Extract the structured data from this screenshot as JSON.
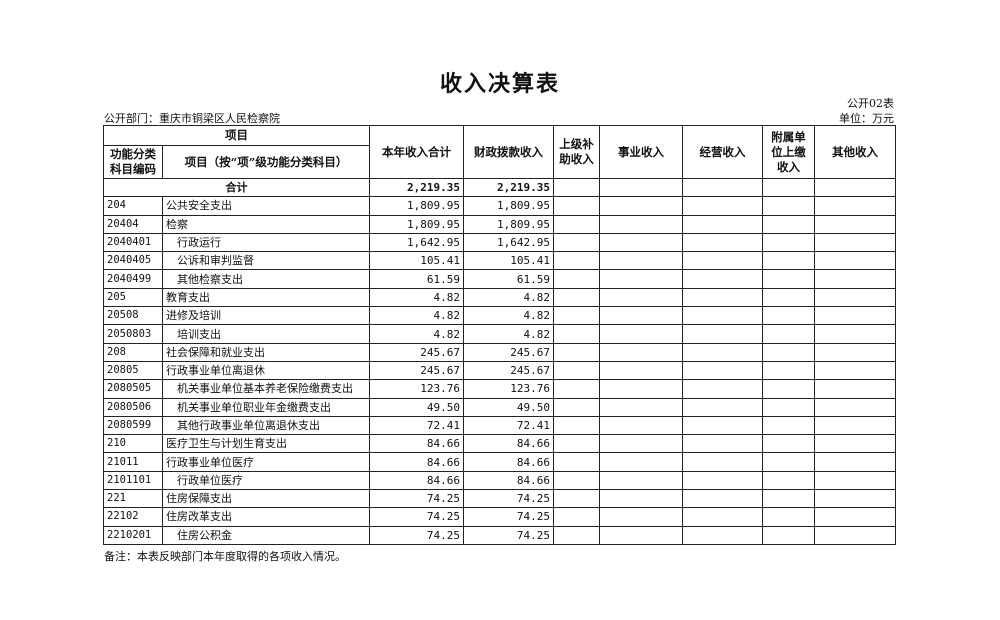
{
  "title": "收入决算表",
  "form_no": "公开02表",
  "department": "公开部门：重庆市铜梁区人民检察院",
  "unit": "单位：万元",
  "headers": {
    "item": "项目",
    "code": "功能分类科目编码",
    "name": "项目（按“项”级功能分类科目）",
    "total": "本年收入合计",
    "fiscal": "财政拨款收入",
    "superior": "上级补助收入",
    "business": "事业收入",
    "operating": "经营收入",
    "affiliated": "附属单位上缴收入",
    "other": "其他收入"
  },
  "total_row": {
    "label": "合计",
    "total": "2,219.35",
    "fiscal": "2,219.35"
  },
  "rows": [
    {
      "code": "204",
      "name": "公共安全支出",
      "total": "1,809.95",
      "fiscal": "1,809.95",
      "indent": false
    },
    {
      "code": "20404",
      "name": "检察",
      "total": "1,809.95",
      "fiscal": "1,809.95",
      "indent": false
    },
    {
      "code": "2040401",
      "name": "行政运行",
      "total": "1,642.95",
      "fiscal": "1,642.95",
      "indent": true
    },
    {
      "code": "2040405",
      "name": "公诉和审判监督",
      "total": "105.41",
      "fiscal": "105.41",
      "indent": true
    },
    {
      "code": "2040499",
      "name": "其他检察支出",
      "total": "61.59",
      "fiscal": "61.59",
      "indent": true
    },
    {
      "code": "205",
      "name": "教育支出",
      "total": "4.82",
      "fiscal": "4.82",
      "indent": false
    },
    {
      "code": "20508",
      "name": "进修及培训",
      "total": "4.82",
      "fiscal": "4.82",
      "indent": false
    },
    {
      "code": "2050803",
      "name": "培训支出",
      "total": "4.82",
      "fiscal": "4.82",
      "indent": true
    },
    {
      "code": "208",
      "name": "社会保障和就业支出",
      "total": "245.67",
      "fiscal": "245.67",
      "indent": false
    },
    {
      "code": "20805",
      "name": "行政事业单位离退休",
      "total": "245.67",
      "fiscal": "245.67",
      "indent": false
    },
    {
      "code": "2080505",
      "name": "机关事业单位基本养老保险缴费支出",
      "total": "123.76",
      "fiscal": "123.76",
      "indent": true
    },
    {
      "code": "2080506",
      "name": "机关事业单位职业年金缴费支出",
      "total": "49.50",
      "fiscal": "49.50",
      "indent": true
    },
    {
      "code": "2080599",
      "name": "其他行政事业单位离退休支出",
      "total": "72.41",
      "fiscal": "72.41",
      "indent": true
    },
    {
      "code": "210",
      "name": "医疗卫生与计划生育支出",
      "total": "84.66",
      "fiscal": "84.66",
      "indent": false
    },
    {
      "code": "21011",
      "name": "行政事业单位医疗",
      "total": "84.66",
      "fiscal": "84.66",
      "indent": false
    },
    {
      "code": "2101101",
      "name": "行政单位医疗",
      "total": "84.66",
      "fiscal": "84.66",
      "indent": true
    },
    {
      "code": "221",
      "name": "住房保障支出",
      "total": "74.25",
      "fiscal": "74.25",
      "indent": false
    },
    {
      "code": "22102",
      "name": "住房改革支出",
      "total": "74.25",
      "fiscal": "74.25",
      "indent": false
    },
    {
      "code": "2210201",
      "name": "住房公积金",
      "total": "74.25",
      "fiscal": "74.25",
      "indent": true
    }
  ],
  "note": "备注：本表反映部门本年度取得的各项收入情况。"
}
